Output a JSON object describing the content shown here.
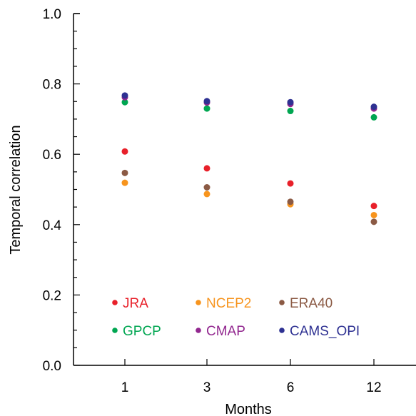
{
  "chart_data": {
    "type": "scatter",
    "xlabel": "Months",
    "ylabel": "Temporal correlation",
    "ylim": [
      0.0,
      1.0
    ],
    "categories": [
      "1",
      "3",
      "6",
      "12"
    ],
    "yticks": [
      "0.0",
      "0.2",
      "0.4",
      "0.6",
      "0.8",
      "1.0"
    ],
    "grid": false,
    "legend_position": "lower-center inside plot",
    "series": [
      {
        "name": "JRA",
        "color": "#e8202a",
        "values": [
          0.608,
          0.56,
          0.517,
          0.453
        ]
      },
      {
        "name": "NCEP2",
        "color": "#f7941d",
        "values": [
          0.519,
          0.487,
          0.458,
          0.427
        ]
      },
      {
        "name": "ERA40",
        "color": "#8b5a44",
        "values": [
          0.547,
          0.506,
          0.465,
          0.408
        ]
      },
      {
        "name": "GPCP",
        "color": "#00a651",
        "values": [
          0.748,
          0.73,
          0.723,
          0.705
        ]
      },
      {
        "name": "CMAP",
        "color": "#92278f",
        "values": [
          0.762,
          0.747,
          0.743,
          0.73
        ]
      },
      {
        "name": "CAMS_OPI",
        "color": "#2e3192",
        "values": [
          0.767,
          0.751,
          0.748,
          0.735
        ]
      }
    ]
  }
}
